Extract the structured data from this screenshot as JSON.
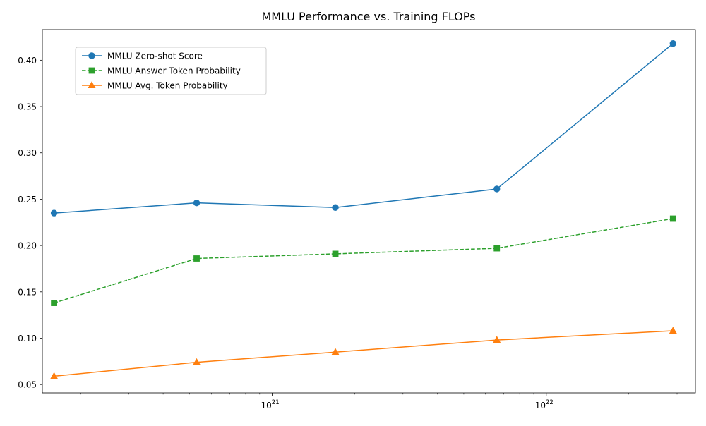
{
  "chart_data": {
    "type": "line",
    "title": "MMLU Performance vs. Training FLOPs",
    "xlabel": "",
    "ylabel": "",
    "xscale": "log",
    "xlim": [
      1.45e+20,
      3.5e+22
    ],
    "ylim": [
      0.041,
      0.433
    ],
    "x": [
      1.6e+20,
      5.3e+20,
      1.7e+21,
      6.6e+21,
      2.9e+22
    ],
    "x_ticks": [
      {
        "value": 1e+21,
        "base": "10",
        "exp": "21"
      },
      {
        "value": 1e+22,
        "base": "10",
        "exp": "22"
      }
    ],
    "x_minor_ticks": [
      2e+20,
      3e+20,
      4e+20,
      5e+20,
      6e+20,
      7e+20,
      8e+20,
      9e+20,
      2e+21,
      3e+21,
      4e+21,
      5e+21,
      6e+21,
      7e+21,
      8e+21,
      9e+21,
      2e+22,
      3e+22
    ],
    "y_ticks": [
      0.05,
      0.1,
      0.15,
      0.2,
      0.25,
      0.3,
      0.35,
      0.4
    ],
    "y_tick_labels": [
      "0.05",
      "0.10",
      "0.15",
      "0.20",
      "0.25",
      "0.30",
      "0.35",
      "0.40"
    ],
    "grid": false,
    "legend_position": "upper-left",
    "series": [
      {
        "name": "MMLU Zero-shot Score",
        "values": [
          0.235,
          0.246,
          0.241,
          0.261,
          0.418
        ],
        "color": "#1f77b4",
        "marker": "circle",
        "line_style": "solid"
      },
      {
        "name": "MMLU Answer Token Probability",
        "values": [
          0.138,
          0.186,
          0.191,
          0.197,
          0.229
        ],
        "color": "#2ca02c",
        "marker": "square",
        "line_style": "dashed"
      },
      {
        "name": "MMLU Avg. Token Probability",
        "values": [
          0.059,
          0.074,
          0.085,
          0.098,
          0.108
        ],
        "color": "#ff7f0e",
        "marker": "triangle",
        "line_style": "solid"
      }
    ]
  }
}
